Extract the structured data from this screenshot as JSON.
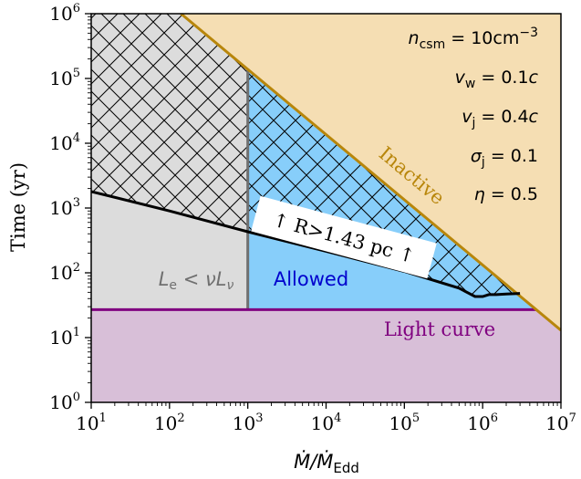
{
  "chart_data": {
    "type": "area",
    "xlabel_main": "Ṁ/Ṁ",
    "xlabel_sub": "Edd",
    "ylabel": "Time (yr)",
    "x_scale": "log",
    "y_scale": "log",
    "xlim": [
      10,
      10000000
    ],
    "ylim": [
      1,
      1000000
    ],
    "x_ticks": [
      {
        "value": 10,
        "base": "10",
        "exp": "1"
      },
      {
        "value": 100,
        "base": "10",
        "exp": "2"
      },
      {
        "value": 1000,
        "base": "10",
        "exp": "3"
      },
      {
        "value": 10000,
        "base": "10",
        "exp": "4"
      },
      {
        "value": 100000,
        "base": "10",
        "exp": "5"
      },
      {
        "value": 1000000,
        "base": "10",
        "exp": "6"
      },
      {
        "value": 10000000,
        "base": "10",
        "exp": "7"
      }
    ],
    "y_ticks": [
      {
        "value": 1,
        "base": "10",
        "exp": "0"
      },
      {
        "value": 10,
        "base": "10",
        "exp": "1"
      },
      {
        "value": 100,
        "base": "10",
        "exp": "2"
      },
      {
        "value": 1000,
        "base": "10",
        "exp": "3"
      },
      {
        "value": 10000,
        "base": "10",
        "exp": "4"
      },
      {
        "value": 100000,
        "base": "10",
        "exp": "5"
      },
      {
        "value": 1000000,
        "base": "10",
        "exp": "6"
      }
    ],
    "regions": {
      "inactive": {
        "label": "Inactive",
        "color": "#f5deb3",
        "edge": "#b8860b",
        "boundary": [
          [
            140,
            1000000
          ],
          [
            10000000,
            13
          ]
        ]
      },
      "light_curve": {
        "label": "Light curve",
        "color": "#d8bfd8",
        "edge": "#800080",
        "t_max": 27
      },
      "cooling": {
        "label_main": "L",
        "label_sub": "e",
        "label_mid": " < νL",
        "label_sub2": "ν",
        "color": "#dcdcdc",
        "edge": "#707070",
        "x_max": 1000
      },
      "allowed": {
        "label": "Allowed",
        "color": "#87cefa",
        "text_color": "#0000cd"
      }
    },
    "radius_curve": {
      "label": "↑ R>1.43 pc ↑",
      "color": "#000000",
      "points": [
        [
          10,
          1800
        ],
        [
          100,
          900
        ],
        [
          1000,
          430
        ],
        [
          10000,
          215
        ],
        [
          100000,
          105
        ],
        [
          500000,
          58
        ],
        [
          800000,
          43
        ],
        [
          1000000,
          43
        ],
        [
          1200000,
          46
        ],
        [
          1500000,
          46
        ],
        [
          2000000,
          47
        ],
        [
          3000000,
          48
        ]
      ]
    },
    "parameters": [
      {
        "symbol": "n",
        "sub": "csm",
        "value": " = 10cm",
        "sup": "−3"
      },
      {
        "symbol": "v",
        "sub": "w",
        "value": " = 0.1",
        "tail": "c"
      },
      {
        "symbol": "v",
        "sub": "j",
        "value": " = 0.4",
        "tail": "c"
      },
      {
        "symbol": "σ",
        "sub": "j",
        "value": " = 0.1"
      },
      {
        "symbol": "η",
        "sub": "",
        "value": " = 0.5"
      }
    ]
  }
}
